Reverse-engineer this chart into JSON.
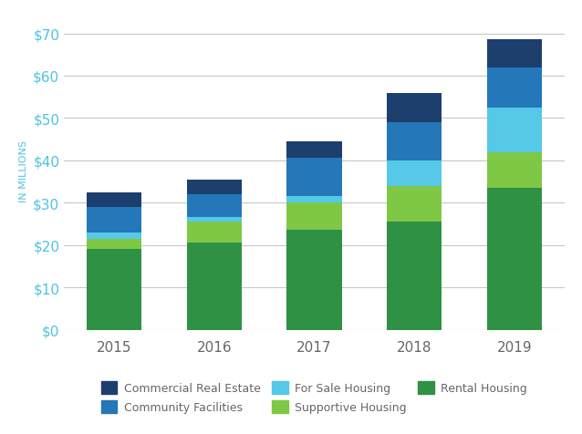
{
  "years": [
    "2015",
    "2016",
    "2017",
    "2018",
    "2019"
  ],
  "rental_housing": [
    19.0,
    20.5,
    23.5,
    25.5,
    33.5
  ],
  "supportive_housing": [
    2.5,
    5.0,
    6.5,
    8.5,
    8.5
  ],
  "for_sale_housing": [
    1.5,
    1.0,
    1.5,
    6.0,
    10.5
  ],
  "community_facilities": [
    6.0,
    5.5,
    9.0,
    9.0,
    9.5
  ],
  "commercial_real_estate": [
    3.5,
    3.5,
    4.0,
    7.0,
    6.5
  ],
  "colors": {
    "rental_housing": "#2e9144",
    "supportive_housing": "#7ec846",
    "for_sale_housing": "#56c8e8",
    "community_facilities": "#2477b8",
    "commercial_real_estate": "#1c3f6e"
  },
  "legend_labels": {
    "commercial_real_estate": "Commercial Real Estate",
    "community_facilities": "Community Facilities",
    "for_sale_housing": "For Sale Housing",
    "supportive_housing": "Supportive Housing",
    "rental_housing": "Rental Housing"
  },
  "ylabel": "IN MILLIONS",
  "ylim": [
    0,
    75
  ],
  "yticks": [
    0,
    10,
    20,
    30,
    40,
    50,
    60,
    70
  ],
  "ytick_labels": [
    "$0",
    "$10",
    "$20",
    "$30",
    "$40",
    "$50",
    "$60",
    "$70"
  ],
  "background_color": "#ffffff",
  "grid_color": "#c8c8c8",
  "bar_width": 0.55,
  "axis_label_color": "#4ec3e0",
  "tick_color": "#4ec3e0",
  "text_color": "#666666"
}
